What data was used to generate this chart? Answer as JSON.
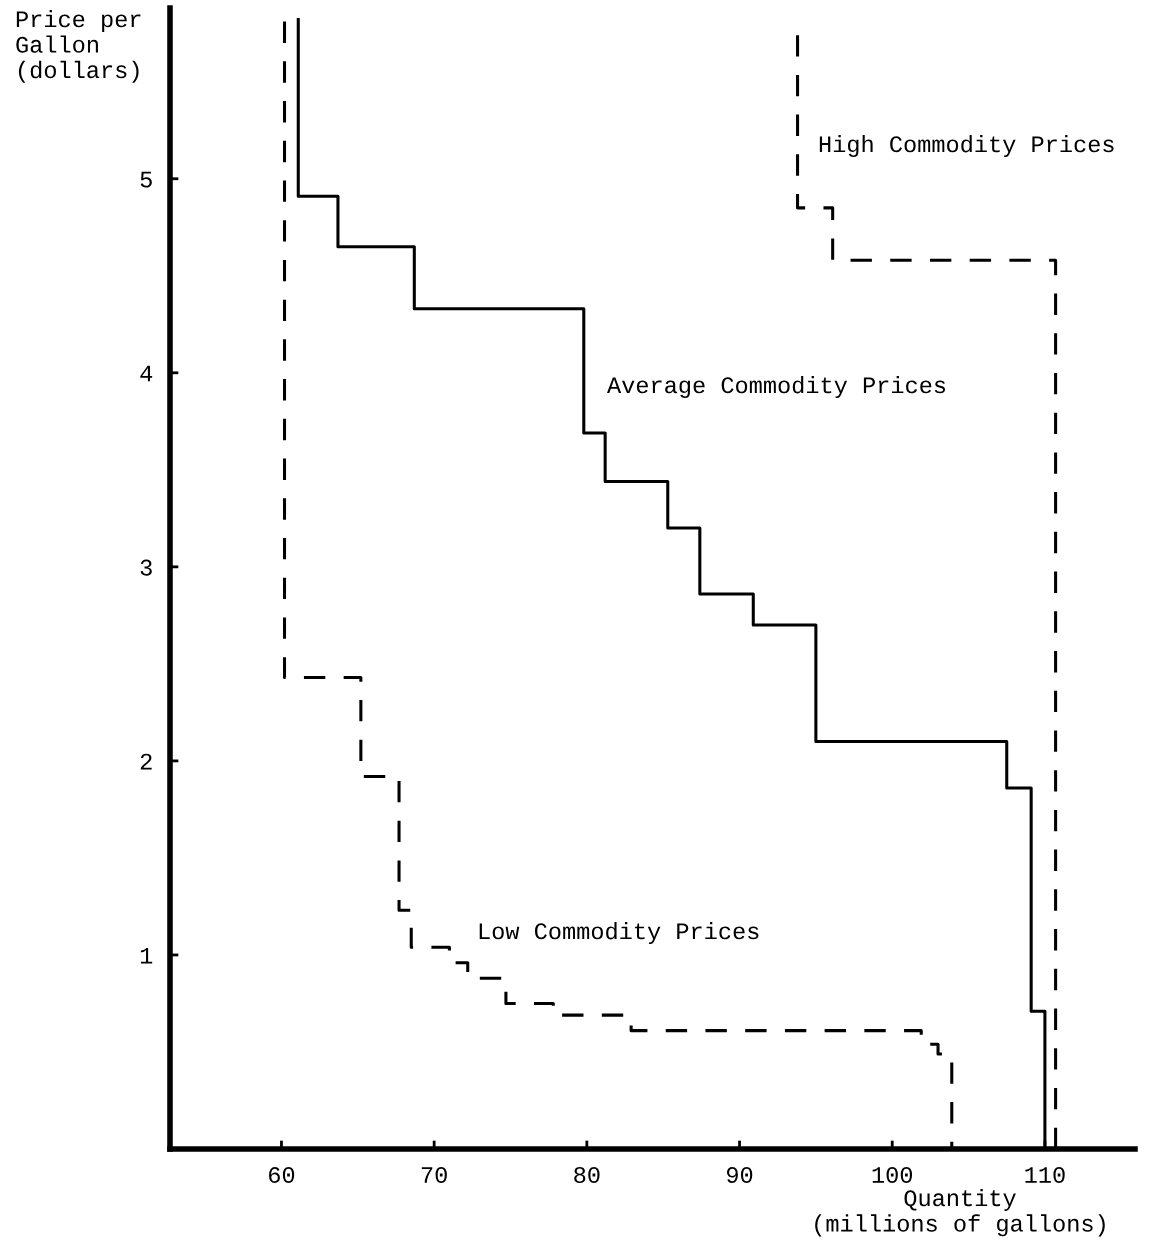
{
  "chart_data": {
    "type": "step",
    "xlabel": "Quantity\n(millions of gallons)",
    "ylabel": "Price per\nGallon\n(dollars)",
    "xlim": [
      52.7,
      115.9
    ],
    "ylim": [
      0,
      5.88
    ],
    "xticks": [
      60,
      70,
      80,
      90,
      100,
      110
    ],
    "yticks": [
      {
        "value": 0,
        "label": null
      },
      1,
      2,
      3,
      4,
      5
    ],
    "grid": false,
    "legend": false,
    "marker": "none",
    "series": [
      {
        "name": "Average Commodity Prices",
        "color": "#000000",
        "line_style": "solid",
        "x": [
          61.1,
          61.1,
          63.7,
          68.7,
          79.8,
          81.2,
          85.3,
          87.4,
          90.9,
          95.0,
          107.5,
          109.1,
          110.0
        ],
        "values": [
          5.82,
          4.91,
          4.65,
          4.33,
          3.69,
          3.44,
          3.2,
          2.86,
          2.7,
          2.1,
          1.86,
          0.71,
          0
        ]
      },
      {
        "name": "Low Commodity Prices",
        "color": "#000000",
        "line_style": "dashed",
        "x": [
          60.2,
          60.2,
          65.2,
          67.7,
          68.5,
          71.0,
          72.2,
          74.7,
          77.8,
          82.9,
          101.9,
          103.0,
          103.9
        ],
        "values": [
          5.81,
          2.43,
          1.92,
          1.23,
          1.04,
          0.96,
          0.88,
          0.75,
          0.69,
          0.61,
          0.54,
          0.49,
          0
        ]
      },
      {
        "name": "High Commodity Prices",
        "color": "#000000",
        "line_style": "dashed",
        "x": [
          93.8,
          93.8,
          96.1,
          110.7
        ],
        "values": [
          5.74,
          4.85,
          4.58,
          0
        ]
      }
    ]
  }
}
